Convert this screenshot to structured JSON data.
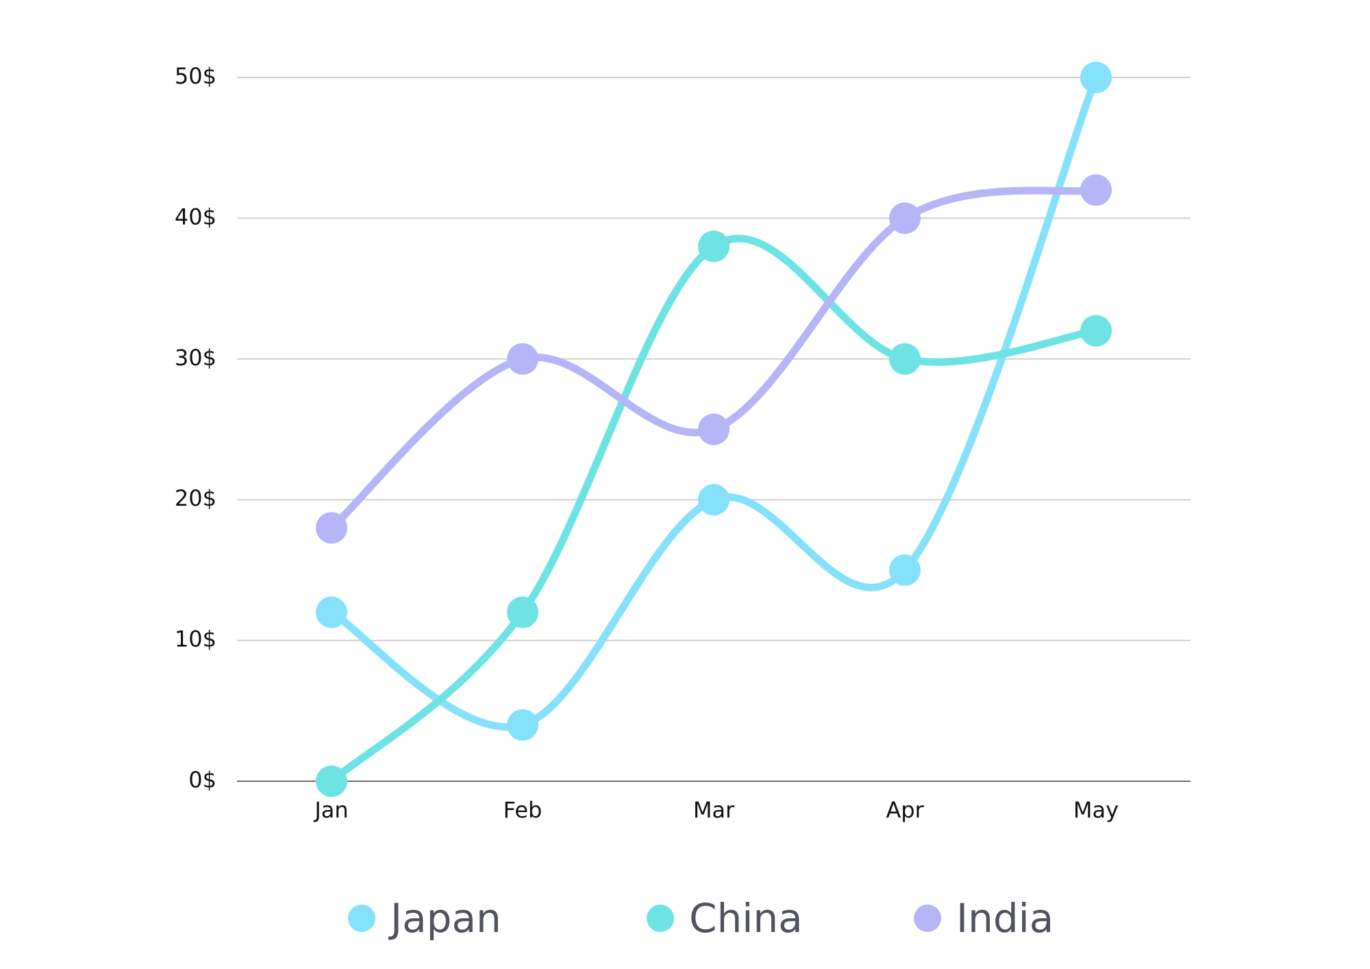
{
  "chart_data": {
    "type": "line",
    "categories": [
      "Jan",
      "Feb",
      "Mar",
      "Apr",
      "May"
    ],
    "y_ticks": [
      "0$",
      "10$",
      "20$",
      "30$",
      "40$",
      "50$"
    ],
    "ylim": [
      0,
      50
    ],
    "grid": true,
    "legend_position": "bottom",
    "series": [
      {
        "name": "Japan",
        "color": "#86e1fb",
        "values": [
          12,
          4,
          20,
          15,
          50
        ]
      },
      {
        "name": "China",
        "color": "#6ee3e3",
        "values": [
          0,
          12,
          38,
          30,
          32
        ]
      },
      {
        "name": "India",
        "color": "#b5b5f8",
        "values": [
          18,
          30,
          25,
          40,
          42
        ]
      }
    ]
  }
}
